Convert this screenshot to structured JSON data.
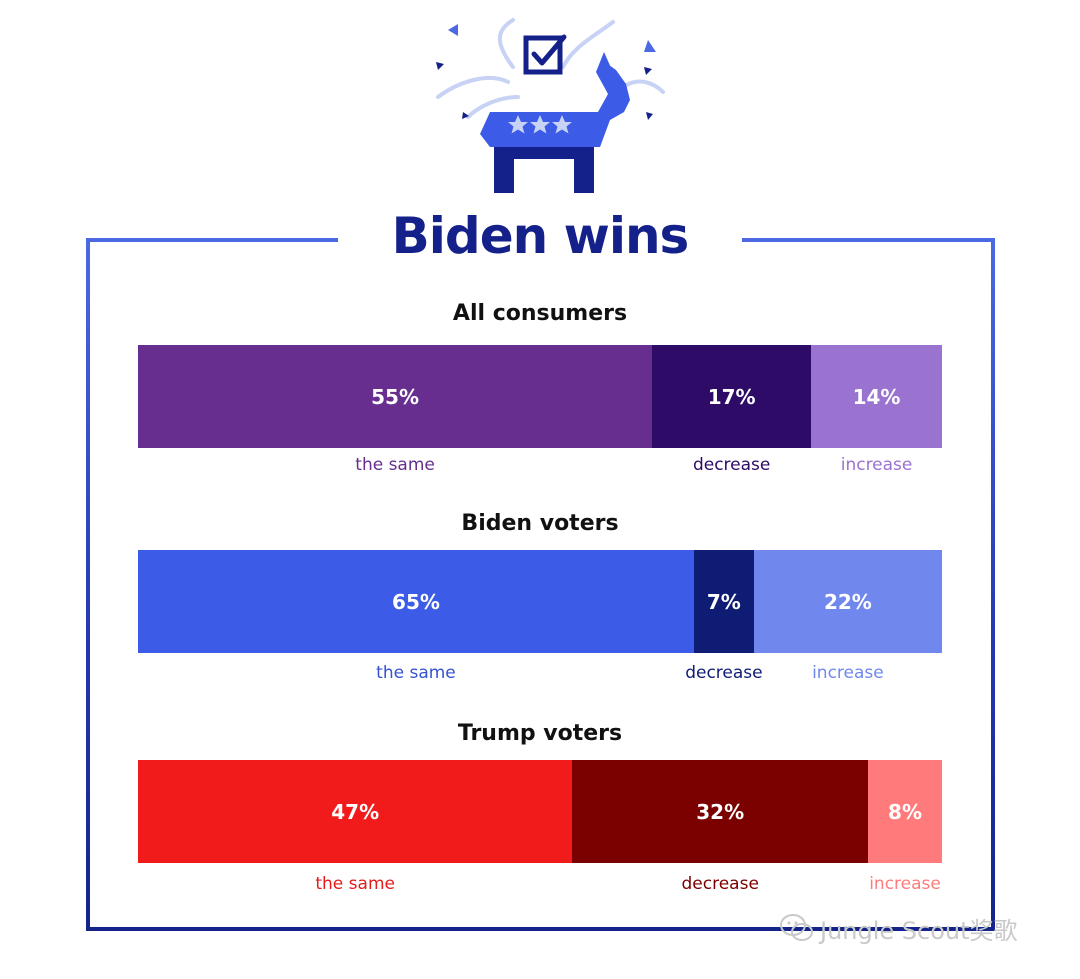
{
  "title": "Biden wins",
  "colors": {
    "frame": "#2337b0",
    "title": "#15218a"
  },
  "logo": {
    "icon": "democratic-donkey-with-checkbox-icon"
  },
  "watermark": {
    "text": "Jungle Scout奖歌",
    "icon": "wechat-icon"
  },
  "chart_data": [
    {
      "type": "bar",
      "orientation": "horizontal-stacked-100",
      "title": "All consumers",
      "categories": [
        "the same",
        "decrease",
        "increase"
      ],
      "values": [
        55,
        17,
        14
      ],
      "value_labels": [
        "55%",
        "17%",
        "14%"
      ],
      "colors": [
        "#672d8f",
        "#2d0b66",
        "#9a72d0"
      ],
      "label_colors": [
        "#672d8f",
        "#2d0b66",
        "#9a72d0"
      ]
    },
    {
      "type": "bar",
      "orientation": "horizontal-stacked-100",
      "title": "Biden voters",
      "categories": [
        "the same",
        "decrease",
        "increase"
      ],
      "values": [
        65,
        7,
        22
      ],
      "value_labels": [
        "65%",
        "7%",
        "22%"
      ],
      "colors": [
        "#3c5be6",
        "#0e1c73",
        "#7088ee"
      ],
      "label_colors": [
        "#3352d4",
        "#0e1c73",
        "#7088ee"
      ]
    },
    {
      "type": "bar",
      "orientation": "horizontal-stacked-100",
      "title": "Trump voters",
      "categories": [
        "the same",
        "decrease",
        "increase"
      ],
      "values": [
        47,
        32,
        8
      ],
      "value_labels": [
        "47%",
        "32%",
        "8%"
      ],
      "colors": [
        "#f21b1b",
        "#7b0000",
        "#ff7b7b"
      ],
      "label_colors": [
        "#e41b1b",
        "#7b0000",
        "#ff7b7b"
      ]
    }
  ]
}
